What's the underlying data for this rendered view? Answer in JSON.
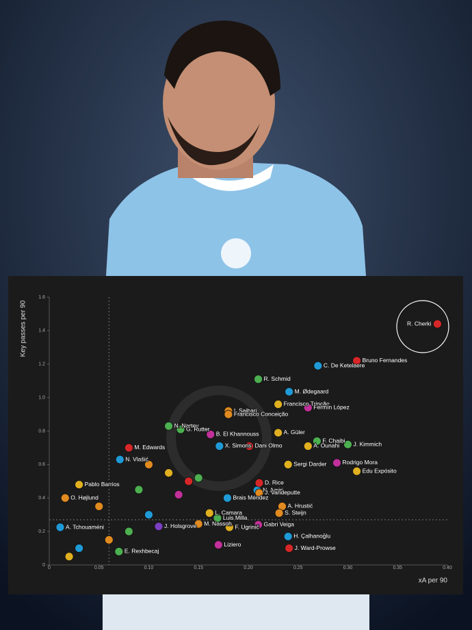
{
  "chart_data": {
    "type": "scatter",
    "x_label": "xA per 90",
    "y_label": "Key passes per 90",
    "xlim": [
      0,
      0.4
    ],
    "ylim": [
      0,
      1.6
    ],
    "xticks": [
      0,
      0.05,
      {
        "value": 0.1,
        "label": "0.10"
      },
      0.15,
      {
        "value": 0.2,
        "label": "0.20"
      },
      0.25,
      {
        "value": 0.3,
        "label": "0.30"
      },
      0.35,
      {
        "value": 0.4,
        "label": "0.40"
      }
    ],
    "yticks": [
      0,
      0.2,
      0.4,
      0.6,
      0.8,
      {
        "value": 1,
        "label": "1.0"
      },
      1.2,
      1.4,
      1.6
    ],
    "reference_lines": {
      "x": 0.06,
      "y": 0.27
    },
    "labels": [
      "R. Cherki",
      "Bruno Fernandes",
      "C. De Ketelaere",
      "R. Schmid",
      "M. Ødegaard",
      "Francisco Trincão",
      "Fermín López",
      "I. Saibari",
      "Francisco Conceição",
      "N. Nartey",
      "G. Rutter",
      "B. El Khannouss",
      "A. Güler",
      "J. Kimmich",
      "F. Chaibi",
      "A. Ounahi",
      "Dani Olmo",
      "X. Simons",
      "M. Edwards",
      "Rodrigo Mora",
      "Edu Expósito",
      "Sergi Darder",
      "N. Vlašić",
      "Pablo Barrios",
      "O. Højlund",
      "A. Hrustić",
      "S. Steijn",
      "Gabri Veiga",
      "H. Çalhanoğlu",
      "J. Ward-Prowse",
      "Liziero",
      "F. Ugrinić",
      "M. Nassoh",
      "J. Holsgrove",
      "N. Amiri",
      "J. Vandeputte",
      "D. Rice",
      "Brais Méndez",
      "L. Camara",
      "Luis Milla",
      "E. Rexhbecaj",
      "A. Tchouaméni",
      null,
      null,
      null,
      null,
      null,
      null,
      null,
      null,
      null,
      null,
      null,
      null
    ],
    "x": [
      0.39,
      0.309,
      0.27,
      0.21,
      0.241,
      0.23,
      0.26,
      0.18,
      0.18,
      0.12,
      0.132,
      0.162,
      0.23,
      0.3,
      0.269,
      0.26,
      0.201,
      0.171,
      0.08,
      0.289,
      0.309,
      0.24,
      0.071,
      0.03,
      0.016,
      0.234,
      0.231,
      0.21,
      0.24,
      0.241,
      0.17,
      0.181,
      0.15,
      0.11,
      0.209,
      0.211,
      0.211,
      0.179,
      0.161,
      0.169,
      0.07,
      0.011,
      0.05,
      0.09,
      0.1,
      0.12,
      0.14,
      0.06,
      0.03,
      0.08,
      0.13,
      0.02,
      0.1,
      0.15
    ],
    "values": [
      1.44,
      1.22,
      1.19,
      1.11,
      1.035,
      0.96,
      0.94,
      0.92,
      0.9,
      0.83,
      0.81,
      0.78,
      0.79,
      0.72,
      0.74,
      0.71,
      0.71,
      0.71,
      0.7,
      0.61,
      0.56,
      0.6,
      0.63,
      0.48,
      0.4,
      0.35,
      0.31,
      0.24,
      0.17,
      0.1,
      0.12,
      0.225,
      0.245,
      0.23,
      0.446,
      0.43,
      0.49,
      0.4,
      0.31,
      0.28,
      0.08,
      0.225,
      0.35,
      0.45,
      0.3,
      0.55,
      0.5,
      0.15,
      0.1,
      0.2,
      0.42,
      0.05,
      0.6,
      0.52
    ],
    "colors": [
      "#d62728",
      "#d62728",
      "#1f9ad6",
      "#4caf50",
      "#1f9ad6",
      "#e0b020",
      "#c2309a",
      "#e08a20",
      "#e08a20",
      "#4caf50",
      "#4caf50",
      "#c2309a",
      "#e0b020",
      "#4caf50",
      "#4caf50",
      "#e0b020",
      "#d62728",
      "#1f9ad6",
      "#d62728",
      "#c2309a",
      "#e0b020",
      "#e0b020",
      "#1f9ad6",
      "#e0b020",
      "#e08a20",
      "#e08a20",
      "#e08a20",
      "#c2309a",
      "#1f9ad6",
      "#d62728",
      "#c2309a",
      "#e0b020",
      "#e08a20",
      "#7b3fbf",
      "#1f9ad6",
      "#e08a20",
      "#d62728",
      "#1f9ad6",
      "#e0b020",
      "#4caf50",
      "#4caf50",
      "#1f9ad6",
      "#e08a20",
      "#4caf50",
      "#1f9ad6",
      "#e0b020",
      "#d62728",
      "#e08a20",
      "#1f9ad6",
      "#4caf50",
      "#c2309a",
      "#e0b020",
      "#e08a20",
      "#4caf50"
    ]
  }
}
